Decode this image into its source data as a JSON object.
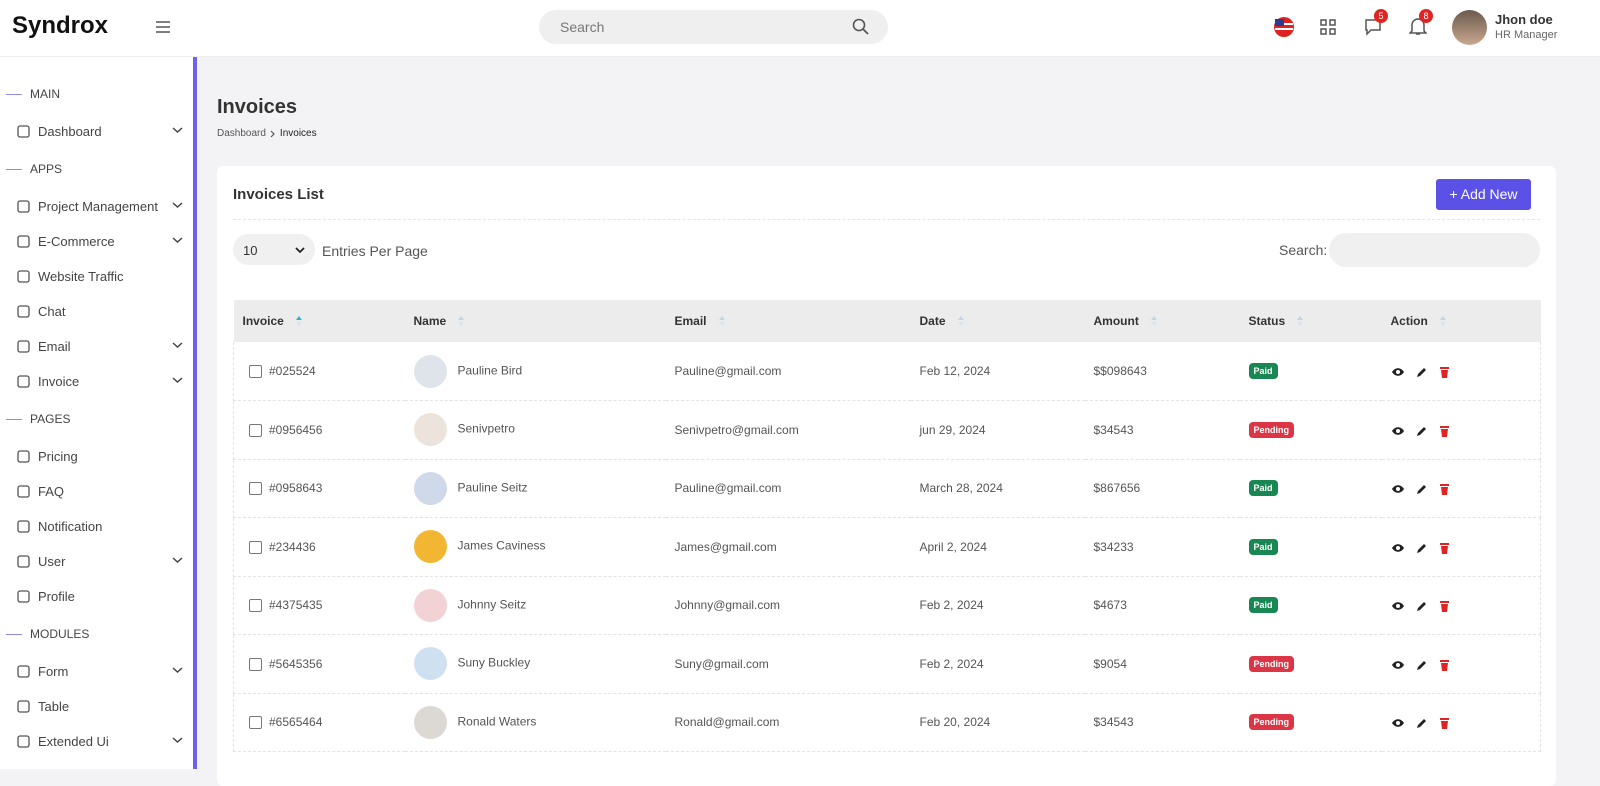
{
  "header": {
    "logo": "Syndrox",
    "search_placeholder": "Search",
    "messages_badge": 5,
    "notifications_badge": 8,
    "user_name": "Jhon doe",
    "user_role": "HR Manager"
  },
  "sidebar": {
    "sections": [
      {
        "title": "MAIN",
        "items": [
          {
            "label": "Dashboard",
            "expandable": true
          }
        ]
      },
      {
        "title": "APPS",
        "items": [
          {
            "label": "Project Management",
            "expandable": true
          },
          {
            "label": "E-Commerce",
            "expandable": true
          },
          {
            "label": "Website Traffic",
            "expandable": false
          },
          {
            "label": "Chat",
            "expandable": false
          },
          {
            "label": "Email",
            "expandable": true
          },
          {
            "label": "Invoice",
            "expandable": true
          }
        ]
      },
      {
        "title": "PAGES",
        "items": [
          {
            "label": "Pricing",
            "expandable": false
          },
          {
            "label": "FAQ",
            "expandable": false
          },
          {
            "label": "Notification",
            "expandable": false
          },
          {
            "label": "User",
            "expandable": true
          },
          {
            "label": "Profile",
            "expandable": false
          }
        ]
      },
      {
        "title": "MODULES",
        "items": [
          {
            "label": "Form",
            "expandable": true
          },
          {
            "label": "Table",
            "expandable": false
          },
          {
            "label": "Extended Ui",
            "expandable": true
          }
        ]
      }
    ]
  },
  "page": {
    "title": "Invoices",
    "breadcrumb": [
      "Dashboard",
      "Invoices"
    ]
  },
  "card": {
    "title": "Invoices List",
    "add_button": "+ Add New",
    "entries_value": "10",
    "entries_label": "Entries Per Page",
    "search_label": "Search:"
  },
  "table": {
    "columns": [
      {
        "label": "Invoice",
        "sort": "asc"
      },
      {
        "label": "Name"
      },
      {
        "label": "Email"
      },
      {
        "label": "Date"
      },
      {
        "label": "Amount"
      },
      {
        "label": "Status"
      },
      {
        "label": "Action"
      }
    ],
    "rows": [
      {
        "invoice": "#025524",
        "name": "Pauline Bird",
        "email": "Pauline@gmail.com",
        "date": "Feb 12, 2024",
        "amount": "$$098643",
        "status": "Paid",
        "status_color": "#198754"
      },
      {
        "invoice": "#0956456",
        "name": "Senivpetro",
        "email": "Senivpetro@gmail.com",
        "date": "jun 29, 2024",
        "amount": "$34543",
        "status": "Pending",
        "status_color": "#dc3545"
      },
      {
        "invoice": "#0958643",
        "name": "Pauline Seitz",
        "email": "Pauline@gmail.com",
        "date": "March 28, 2024",
        "amount": "$867656",
        "status": "Paid",
        "status_color": "#198754"
      },
      {
        "invoice": "#234436",
        "name": "James Caviness",
        "email": "James@gmail.com",
        "date": "April 2, 2024",
        "amount": "$34233",
        "status": "Paid",
        "status_color": "#198754"
      },
      {
        "invoice": "#4375435",
        "name": "Johnny Seitz",
        "email": "Johnny@gmail.com",
        "date": "Feb 2, 2024",
        "amount": "$4673",
        "status": "Paid",
        "status_color": "#198754"
      },
      {
        "invoice": "#5645356",
        "name": "Suny Buckley",
        "email": "Suny@gmail.com",
        "date": "Feb 2, 2024",
        "amount": "$9054",
        "status": "Pending",
        "status_color": "#dc3545"
      },
      {
        "invoice": "#6565464",
        "name": "Ronald Waters",
        "email": "Ronald@gmail.com",
        "date": "Feb 20, 2024",
        "amount": "$34543",
        "status": "Pending",
        "status_color": "#dc3545"
      }
    ]
  }
}
